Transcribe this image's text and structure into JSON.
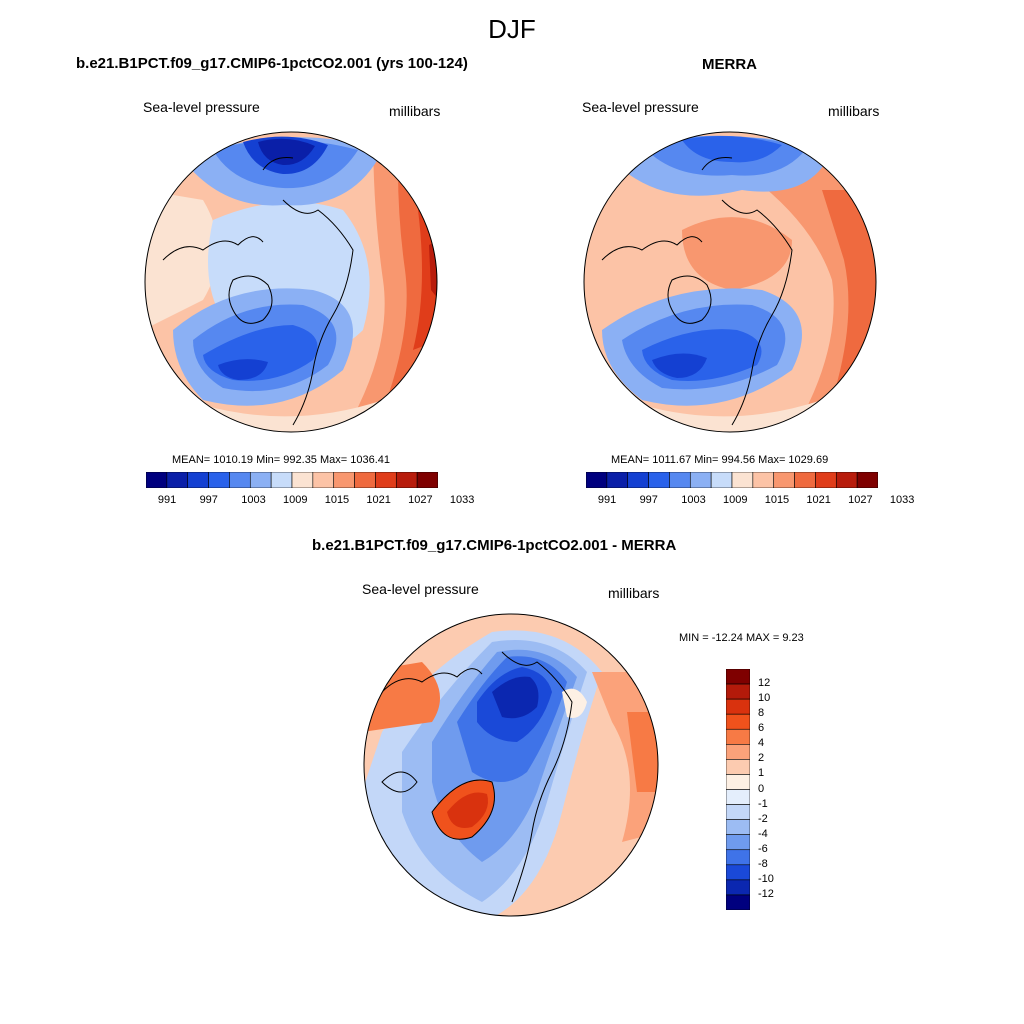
{
  "figure": {
    "season": "DJF"
  },
  "panel_model": {
    "title": "b.e21.B1PCT.f09_g17.CMIP6-1pctCO2.001 (yrs 100-124)",
    "left_label": "Sea-level pressure",
    "right_label": "millibars",
    "stats": "MEAN= 1010.19  Min= 992.35  Max= 1036.41"
  },
  "panel_obs": {
    "title": "MERRA",
    "left_label": "Sea-level pressure",
    "right_label": "millibars",
    "stats": "MEAN= 1011.67  Min= 994.56  Max= 1029.69"
  },
  "panel_diff": {
    "title": "b.e21.B1PCT.f09_g17.CMIP6-1pctCO2.001 - MERRA",
    "left_label": "Sea-level pressure",
    "right_label": "millibars",
    "stats": "MIN = -12.24 MAX =   9.23"
  },
  "colorbar_abs": {
    "colors": [
      "#00007f",
      "#0a1fa8",
      "#1440d2",
      "#2a62ea",
      "#5688f0",
      "#8bb0f4",
      "#c7dcfa",
      "#fbe3d2",
      "#fcc3a6",
      "#f8976f",
      "#ef6a3f",
      "#e03d1a",
      "#b81c0c",
      "#7f0000"
    ],
    "tick_labels": [
      "991",
      "997",
      "1003",
      "1009",
      "1015",
      "1021",
      "1027",
      "1033"
    ]
  },
  "colorbar_diff": {
    "colors": [
      "#7f0000",
      "#b31a0a",
      "#d9320e",
      "#f0521c",
      "#f77a45",
      "#fba27a",
      "#fccbb0",
      "#fdf0e4",
      "#e4eefc",
      "#c3d7f8",
      "#9cbcf3",
      "#6f9bee",
      "#3f73e8",
      "#1a49d8",
      "#0b27b0",
      "#00007f"
    ],
    "tick_labels": [
      "12",
      "10",
      "8",
      "6",
      "4",
      "2",
      "1",
      "0",
      "-1",
      "-2",
      "-4",
      "-6",
      "-8",
      "-10",
      "-12"
    ]
  },
  "maps": {
    "model": {
      "polar_low": "blue",
      "atlantic_low": "blue",
      "siberian_high": "red",
      "pacific_low": "blue"
    },
    "obs": {
      "polar_low": "blue",
      "atlantic_low": "blue",
      "siberian_high": "red",
      "pacific_low": "blue"
    },
    "diff": {
      "arctic_ocean": "blue",
      "greenland": "red",
      "siberia": "red"
    }
  }
}
